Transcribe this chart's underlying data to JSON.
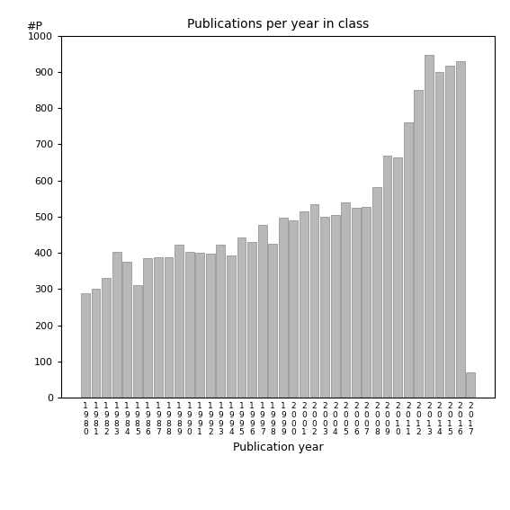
{
  "title": "Publications per year in class",
  "xlabel": "Publication year",
  "ylabel": "#P",
  "years": [
    "1980",
    "1981",
    "1982",
    "1983",
    "1984",
    "1985",
    "1986",
    "1987",
    "1988",
    "1989",
    "1990",
    "1991",
    "1992",
    "1993",
    "1994",
    "1995",
    "1996",
    "1997",
    "1998",
    "1999",
    "2000",
    "2001",
    "2002",
    "2003",
    "2004",
    "2005",
    "2006",
    "2007",
    "2008",
    "2009",
    "2010",
    "2011",
    "2012",
    "2013",
    "2014",
    "2015",
    "2016",
    "2017"
  ],
  "values": [
    290,
    300,
    330,
    403,
    375,
    310,
    385,
    388,
    388,
    422,
    403,
    400,
    398,
    422,
    392,
    444,
    430,
    478,
    425,
    498,
    490,
    515,
    535,
    500,
    505,
    540,
    525,
    528,
    583,
    668,
    663,
    760,
    850,
    948,
    900,
    917,
    930,
    70
  ],
  "bar_color": "#b8b8b8",
  "bar_edge_color": "#888888",
  "ylim": [
    0,
    1000
  ],
  "yticks": [
    0,
    100,
    200,
    300,
    400,
    500,
    600,
    700,
    800,
    900,
    1000
  ],
  "background_color": "#ffffff",
  "figsize": [
    5.67,
    5.67
  ],
  "dpi": 100
}
